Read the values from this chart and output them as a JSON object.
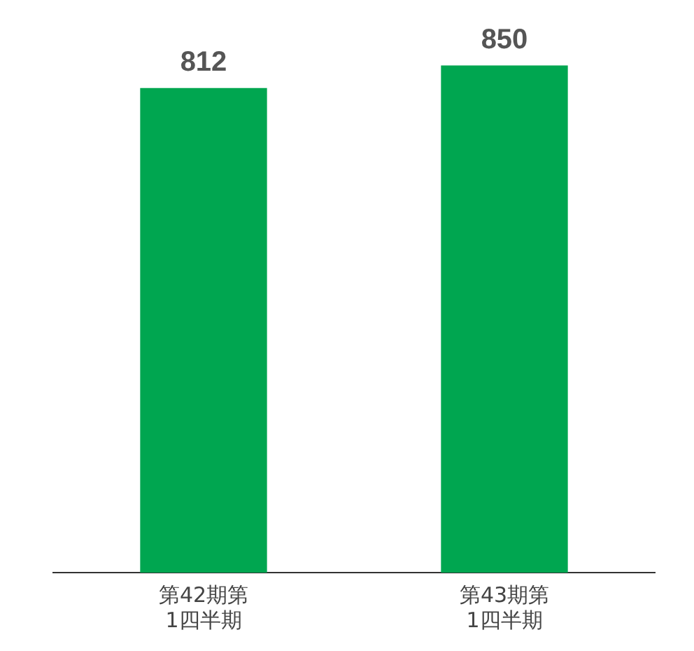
{
  "chart_data": {
    "type": "bar",
    "categories": [
      "第42期第1四半期",
      "第43期第1四半期"
    ],
    "values": [
      812,
      850
    ],
    "colors": [
      "#00a650",
      "#00a650"
    ],
    "data_labels": true,
    "grid": false,
    "legend": false
  }
}
